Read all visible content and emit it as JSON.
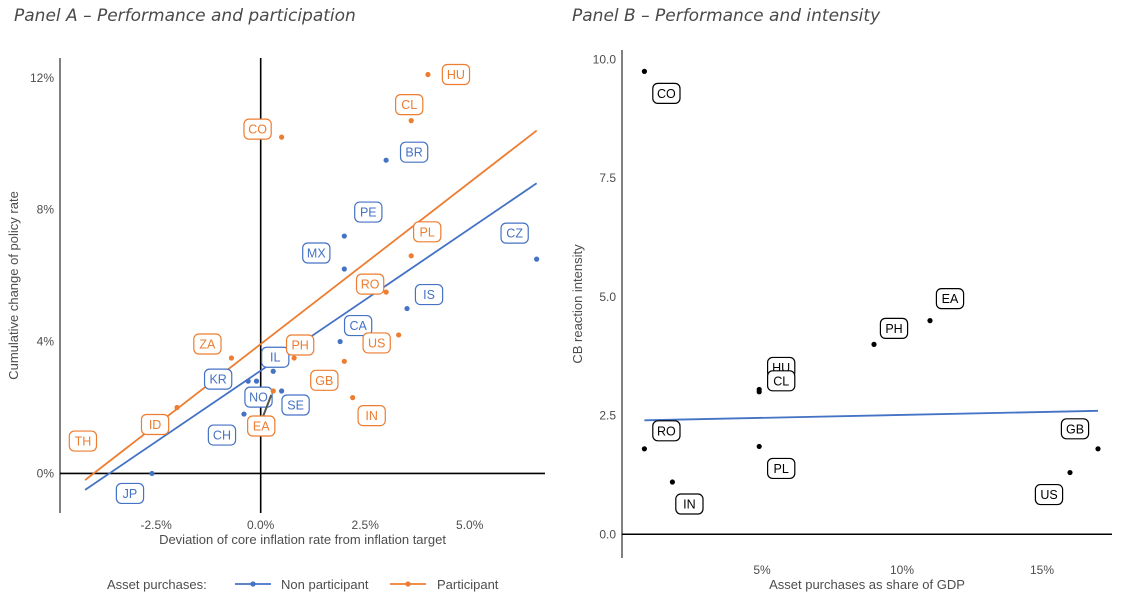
{
  "panel_a_title": "Panel A – Performance and participation",
  "panel_b_title": "Panel B – Performance and intensity",
  "legend": {
    "title": "Asset purchases:",
    "non_participant": "Non participant",
    "participant": "Participant"
  },
  "colors": {
    "non_participant": "#4472c4",
    "participant": "#ed7d31",
    "neutral": "#000000"
  },
  "chart_data": [
    {
      "type": "scatter",
      "title": "Panel A – Performance and participation",
      "xlabel": "Deviation of core inflation rate from inflation target",
      "ylabel": "Cumulative change of policy rate",
      "xlim": [
        -4.8,
        6.8
      ],
      "ylim": [
        -1.2,
        12.6
      ],
      "x_ticks": [
        -2.5,
        0,
        2.5,
        5
      ],
      "x_tick_labels": [
        "-2.5%",
        "0.0%",
        "2.5%",
        "5.0%"
      ],
      "y_ticks": [
        0,
        4,
        8,
        12
      ],
      "y_tick_labels": [
        "0%",
        "4%",
        "8%",
        "12%"
      ],
      "reference_lines": {
        "x": 0,
        "y": 0
      },
      "series": [
        {
          "name": "Non participant",
          "color": "#4472c4",
          "points": [
            {
              "label": "CZ",
              "x": 6.6,
              "y": 6.5
            },
            {
              "label": "BR",
              "x": 3.0,
              "y": 9.5
            },
            {
              "label": "PE",
              "x": 2.0,
              "y": 7.2
            },
            {
              "label": "MX",
              "x": 2.0,
              "y": 6.2
            },
            {
              "label": "CA",
              "x": 1.9,
              "y": 4.0
            },
            {
              "label": "IS",
              "x": 3.5,
              "y": 5.0
            },
            {
              "label": "IL",
              "x": 0.3,
              "y": 3.1
            },
            {
              "label": "KR",
              "x": -0.3,
              "y": 2.8
            },
            {
              "label": "NO",
              "x": -0.1,
              "y": 2.8
            },
            {
              "label": "SE",
              "x": 0.5,
              "y": 2.5
            },
            {
              "label": "CH",
              "x": -0.4,
              "y": 1.8
            },
            {
              "label": "JP",
              "x": -2.6,
              "y": 0.0
            }
          ],
          "fit": {
            "x": [
              -4.2,
              6.6
            ],
            "y": [
              -0.5,
              8.8
            ]
          }
        },
        {
          "name": "Participant",
          "color": "#ed7d31",
          "points": [
            {
              "label": "HU",
              "x": 4.0,
              "y": 12.1
            },
            {
              "label": "CL",
              "x": 3.6,
              "y": 10.7
            },
            {
              "label": "CO",
              "x": 0.5,
              "y": 10.2
            },
            {
              "label": "PL",
              "x": 3.6,
              "y": 6.6
            },
            {
              "label": "RO",
              "x": 3.0,
              "y": 5.5
            },
            {
              "label": "PH",
              "x": 0.8,
              "y": 3.5
            },
            {
              "label": "ZA",
              "x": -0.7,
              "y": 3.5
            },
            {
              "label": "US",
              "x": 3.3,
              "y": 4.2
            },
            {
              "label": "GB",
              "x": 2.0,
              "y": 3.4
            },
            {
              "label": "IN",
              "x": 2.2,
              "y": 2.3
            },
            {
              "label": "ID",
              "x": -2.0,
              "y": 2.0
            },
            {
              "label": "EA",
              "x": 0.3,
              "y": 2.5
            },
            {
              "label": "TH",
              "x": -4.3,
              "y": 0.8
            }
          ],
          "fit": {
            "x": [
              -4.2,
              6.6
            ],
            "y": [
              -0.2,
              10.4
            ]
          }
        }
      ]
    },
    {
      "type": "scatter",
      "title": "Panel B – Performance and intensity",
      "xlabel": "Asset purchases as share of GDP",
      "ylabel": "CB reaction intensity",
      "xlim": [
        0.0,
        17.5
      ],
      "ylim": [
        -0.5,
        10.2
      ],
      "x_ticks": [
        5,
        10,
        15
      ],
      "x_tick_labels": [
        "5%",
        "10%",
        "15%"
      ],
      "y_ticks": [
        0,
        2.5,
        5,
        7.5,
        10
      ],
      "y_tick_labels": [
        "0.0",
        "2.5",
        "5.0",
        "7.5",
        "10.0"
      ],
      "reference_lines": {
        "y": 0
      },
      "points": [
        {
          "label": "CO",
          "x": 0.8,
          "y": 9.75
        },
        {
          "label": "EA",
          "x": 11.0,
          "y": 4.5
        },
        {
          "label": "PH",
          "x": 9.0,
          "y": 4.0
        },
        {
          "label": "HU",
          "x": 4.9,
          "y": 3.05
        },
        {
          "label": "CL",
          "x": 4.9,
          "y": 3.0
        },
        {
          "label": "RO",
          "x": 0.8,
          "y": 1.8
        },
        {
          "label": "PL",
          "x": 4.9,
          "y": 1.85
        },
        {
          "label": "IN",
          "x": 1.8,
          "y": 1.1
        },
        {
          "label": "GB",
          "x": 17.0,
          "y": 1.8
        },
        {
          "label": "US",
          "x": 16.0,
          "y": 1.3
        }
      ],
      "fit": {
        "x": [
          0.8,
          17.0
        ],
        "y": [
          2.4,
          2.6
        ]
      }
    }
  ]
}
